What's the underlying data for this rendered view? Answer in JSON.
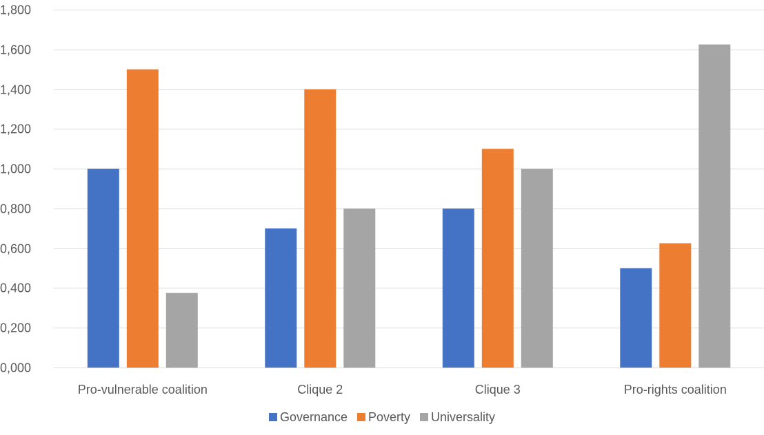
{
  "chart_data": {
    "type": "bar",
    "title": "",
    "xlabel": "",
    "ylabel": "",
    "categories": [
      "Pro-vulnerable coalition",
      "Clique 2",
      "Clique 3",
      "Pro-rights coalition"
    ],
    "series": [
      {
        "name": "Governance",
        "color": "#4472C4",
        "values": [
          1.0,
          0.7,
          0.8,
          0.5
        ]
      },
      {
        "name": "Poverty",
        "color": "#ED7D31",
        "values": [
          1.5,
          1.4,
          1.1,
          0.625
        ]
      },
      {
        "name": "Universality",
        "color": "#A5A5A5",
        "values": [
          0.375,
          0.8,
          1.0,
          1.625
        ]
      }
    ],
    "ylim": [
      0,
      1.8
    ],
    "yticks": [
      0,
      0.2,
      0.4,
      0.6,
      0.8,
      1.0,
      1.2,
      1.4,
      1.6,
      1.8
    ],
    "ytick_labels": [
      "0,000",
      "0,200",
      "0,400",
      "0,600",
      "0,800",
      "1,000",
      "1,200",
      "1,400",
      "1,600",
      "1,800"
    ],
    "grid": true,
    "legend_position": "bottom",
    "gridline_color": "#D9D9D9",
    "text_color": "#595959"
  }
}
